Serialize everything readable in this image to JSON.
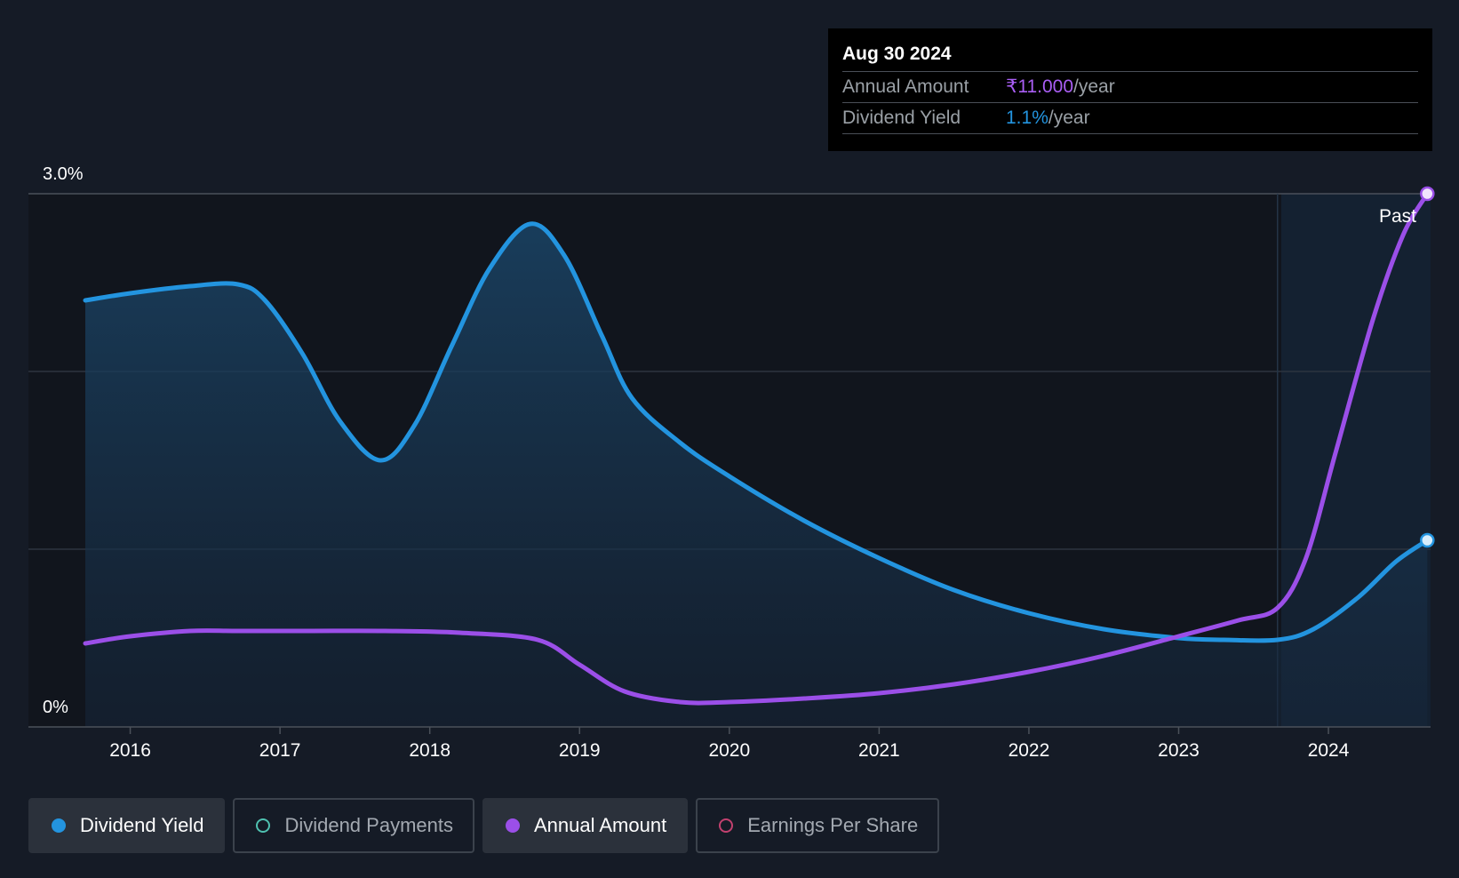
{
  "colors": {
    "background": "#151b26",
    "yield": "#2394df",
    "amount": "#9b4fe8",
    "payments": "#4fc1b0",
    "eps": "#c2416f"
  },
  "tooltip": {
    "date": "Aug 30 2024",
    "rows": [
      {
        "label": "Annual Amount",
        "value": "₹11.000",
        "unit": "/year",
        "color": "#a95ef4"
      },
      {
        "label": "Dividend Yield",
        "value": "1.1%",
        "unit": "/year",
        "color": "#2394df"
      }
    ]
  },
  "past_label": "Past",
  "legend": [
    {
      "label": "Dividend Yield",
      "color": "#2394df",
      "active": true,
      "icon": "filled-dot-icon"
    },
    {
      "label": "Dividend Payments",
      "color": "#4fc1b0",
      "active": false,
      "icon": "hollow-dot-icon"
    },
    {
      "label": "Annual Amount",
      "color": "#9b4fe8",
      "active": true,
      "icon": "filled-dot-icon"
    },
    {
      "label": "Earnings Per Share",
      "color": "#c2416f",
      "active": false,
      "icon": "hollow-dot-icon"
    }
  ],
  "chart_data": {
    "type": "line",
    "y_tick_labels": [
      {
        "value": 3.0,
        "label": "3.0%"
      },
      {
        "value": 0,
        "label": "0%"
      }
    ],
    "ylim": [
      0,
      3.0
    ],
    "xlim": [
      2015.7,
      2024.67
    ],
    "x_ticks": [
      2016,
      2017,
      2018,
      2019,
      2020,
      2021,
      2022,
      2023,
      2024
    ],
    "gridlines": [
      1.0,
      2.0,
      3.0
    ],
    "past_boundary_x": 2023.66,
    "series": [
      {
        "name": "Dividend Yield",
        "axis": "percent",
        "area": true,
        "points": [
          [
            2015.7,
            2.4
          ],
          [
            2016.0,
            2.44
          ],
          [
            2016.4,
            2.48
          ],
          [
            2016.72,
            2.49
          ],
          [
            2016.9,
            2.4
          ],
          [
            2017.15,
            2.1
          ],
          [
            2017.4,
            1.72
          ],
          [
            2017.67,
            1.5
          ],
          [
            2017.9,
            1.7
          ],
          [
            2018.15,
            2.15
          ],
          [
            2018.4,
            2.58
          ],
          [
            2018.67,
            2.83
          ],
          [
            2018.9,
            2.65
          ],
          [
            2019.15,
            2.2
          ],
          [
            2019.35,
            1.85
          ],
          [
            2019.67,
            1.6
          ],
          [
            2020.0,
            1.41
          ],
          [
            2020.5,
            1.16
          ],
          [
            2021.0,
            0.95
          ],
          [
            2021.5,
            0.77
          ],
          [
            2022.0,
            0.64
          ],
          [
            2022.5,
            0.55
          ],
          [
            2023.0,
            0.5
          ],
          [
            2023.3,
            0.49
          ],
          [
            2023.66,
            0.49
          ],
          [
            2023.9,
            0.55
          ],
          [
            2024.2,
            0.73
          ],
          [
            2024.45,
            0.93
          ],
          [
            2024.66,
            1.05
          ]
        ]
      },
      {
        "name": "Annual Amount",
        "axis": "amount",
        "area": false,
        "points": [
          [
            2015.7,
            0.47
          ],
          [
            2016.0,
            0.51
          ],
          [
            2016.4,
            0.54
          ],
          [
            2016.72,
            0.54
          ],
          [
            2017.2,
            0.54
          ],
          [
            2017.7,
            0.54
          ],
          [
            2018.2,
            0.53
          ],
          [
            2018.72,
            0.49
          ],
          [
            2019.0,
            0.35
          ],
          [
            2019.3,
            0.2
          ],
          [
            2019.67,
            0.14
          ],
          [
            2020.0,
            0.14
          ],
          [
            2020.5,
            0.16
          ],
          [
            2021.0,
            0.19
          ],
          [
            2021.5,
            0.24
          ],
          [
            2022.0,
            0.31
          ],
          [
            2022.5,
            0.4
          ],
          [
            2023.0,
            0.51
          ],
          [
            2023.4,
            0.6
          ],
          [
            2023.66,
            0.67
          ],
          [
            2023.85,
            0.95
          ],
          [
            2024.05,
            1.55
          ],
          [
            2024.3,
            2.3
          ],
          [
            2024.5,
            2.77
          ],
          [
            2024.66,
            3.0
          ]
        ]
      }
    ]
  }
}
